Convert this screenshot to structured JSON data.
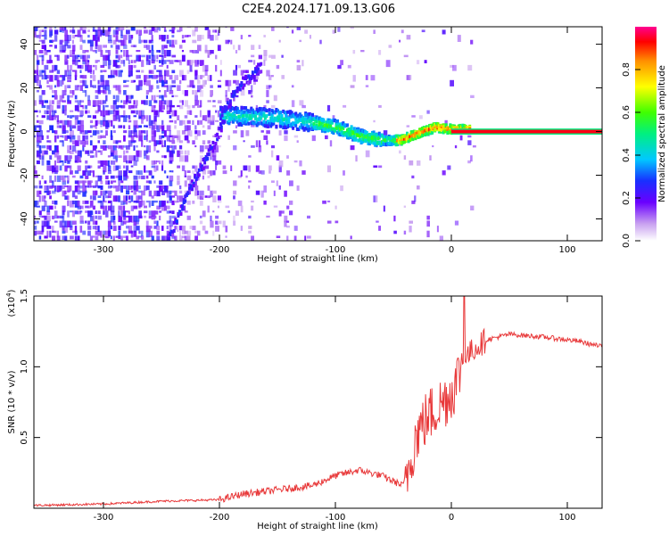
{
  "title": "C2E4.2024.171.09.13.G06",
  "chart_data": [
    {
      "type": "heatmap",
      "name": "spectrogram",
      "xlabel": "Height of straight line (km)",
      "ylabel": "Frequency (Hz)",
      "xlim": [
        -360,
        130
      ],
      "ylim": [
        -50,
        48
      ],
      "xticks": [
        -300,
        -200,
        -100,
        0,
        100
      ],
      "yticks": [
        -40,
        -20,
        0,
        20,
        40
      ],
      "colorbar": {
        "label": "Normalized spectral amplitude",
        "range": [
          0,
          1
        ],
        "ticks": [
          "0.0",
          "0.2",
          "0.4",
          "0.6",
          "0.8"
        ],
        "tick_values": [
          0.0,
          0.2,
          0.4,
          0.6,
          0.8
        ]
      },
      "features": [
        {
          "name": "main-trace",
          "points": [
            [
              -200,
              7
            ],
            [
              -180,
              7
            ],
            [
              -150,
              6
            ],
            [
              -120,
              4
            ],
            [
              -100,
              2
            ],
            [
              -80,
              -2
            ],
            [
              -60,
              -4
            ],
            [
              -45,
              -4
            ],
            [
              -30,
              -1
            ],
            [
              -15,
              2
            ],
            [
              0,
              1
            ],
            [
              15,
              1
            ]
          ]
        },
        {
          "name": "linear-carrier",
          "from_x": 0,
          "to_x": 130,
          "freq": 0
        },
        {
          "name": "lower-branch",
          "points": [
            [
              -245,
              -50
            ],
            [
              -230,
              -30
            ],
            [
              -215,
              -15
            ],
            [
              -205,
              -5
            ],
            [
              -197,
              5
            ]
          ]
        },
        {
          "name": "upper-branch",
          "points": [
            [
              -200,
              7
            ],
            [
              -185,
              20
            ],
            [
              -165,
              30
            ]
          ]
        }
      ]
    },
    {
      "type": "line",
      "name": "snr",
      "xlabel": "Height of straight line (km)",
      "ylabel": "SNR (10 * v/v)",
      "scale_note": "(x10",
      "scale_exp": "4",
      "scale_close": ")",
      "xlim": [
        -360,
        130
      ],
      "ylim": [
        0,
        15000
      ],
      "xticks": [
        -300,
        -200,
        -100,
        0,
        100
      ],
      "yticks": [
        5000,
        10000,
        15000
      ],
      "ytick_labels": [
        "0.5",
        "1.0",
        "1.5"
      ],
      "color": "#e8393a",
      "x": [
        -360,
        -300,
        -250,
        -200,
        -180,
        -150,
        -120,
        -100,
        -80,
        -60,
        -42,
        -38,
        -30,
        -20,
        -10,
        0,
        5,
        10,
        15,
        20,
        30,
        50,
        80,
        110,
        130
      ],
      "y": [
        200,
        300,
        500,
        600,
        1000,
        1300,
        1600,
        2300,
        2700,
        2300,
        1600,
        2500,
        5300,
        6500,
        7300,
        8200,
        9100,
        10500,
        10900,
        11300,
        11900,
        12300,
        12100,
        11800,
        11400
      ]
    }
  ]
}
